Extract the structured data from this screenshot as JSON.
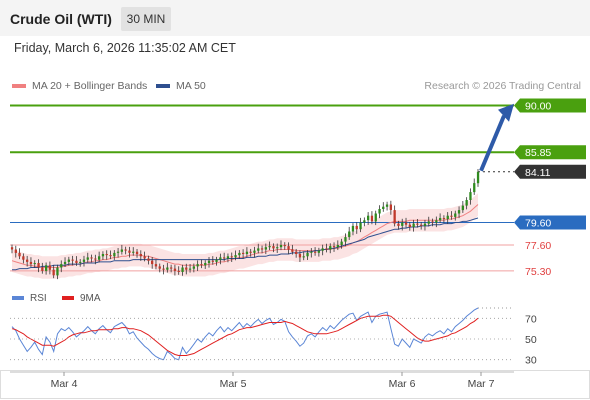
{
  "header": {
    "title": "Crude Oil (WTI)",
    "timeframe": "30 MIN"
  },
  "timestamp": "Friday, March 6, 2026 11:35:02 AM CET",
  "legend": {
    "ma20": {
      "label": "MA 20 + Bollinger Bands",
      "color": "#f08080"
    },
    "ma50": {
      "label": "MA 50",
      "color": "#2e4f8f"
    }
  },
  "credit": "Research © 2026 Trading Central",
  "rsi_legend": {
    "rsi": {
      "label": "RSI",
      "color": "#5b86d6"
    },
    "ma9": {
      "label": "9MA",
      "color": "#e02020"
    }
  },
  "chart_data": [
    {
      "type": "candlestick",
      "ylim": [
        73.6,
        91.2
      ],
      "levels": [
        {
          "value": 90.0,
          "label": "90.00",
          "kind": "resistance",
          "color": "#4aa00f"
        },
        {
          "value": 85.85,
          "label": "85.85",
          "kind": "resistance",
          "color": "#4aa00f"
        },
        {
          "value": 84.11,
          "label": "84.11",
          "kind": "last",
          "color": "#333333"
        },
        {
          "value": 79.6,
          "label": "79.60",
          "kind": "pivot",
          "color": "#2a6cc0"
        },
        {
          "value": 77.6,
          "label": "77.60",
          "kind": "support",
          "color": "#e06060"
        },
        {
          "value": 75.3,
          "label": "75.30",
          "kind": "support",
          "color": "#e06060"
        }
      ],
      "x_ticks": [
        "Mar 4",
        "Mar 5",
        "Mar 6",
        "Mar 7"
      ],
      "arrow": {
        "from": 84.2,
        "to": 89.8,
        "direction": "up"
      },
      "close": [
        77.2,
        76.9,
        76.6,
        76.3,
        76.1,
        75.9,
        76.0,
        75.6,
        75.3,
        75.8,
        75.4,
        74.9,
        75.6,
        75.9,
        76.1,
        76.3,
        76.2,
        76.0,
        76.1,
        76.3,
        76.5,
        76.4,
        76.3,
        76.6,
        76.8,
        76.7,
        76.6,
        76.9,
        77.0,
        77.2,
        77.1,
        76.9,
        77.0,
        76.8,
        76.6,
        76.4,
        76.2,
        75.9,
        75.7,
        75.5,
        75.4,
        75.6,
        75.5,
        75.3,
        75.2,
        75.6,
        75.4,
        75.5,
        75.7,
        75.9,
        75.8,
        76.0,
        76.2,
        76.1,
        76.3,
        76.5,
        76.4,
        76.6,
        76.5,
        76.7,
        76.9,
        76.8,
        77.0,
        76.9,
        77.1,
        77.3,
        77.2,
        77.4,
        77.5,
        77.3,
        77.4,
        77.6,
        77.5,
        77.2,
        77.0,
        76.8,
        76.5,
        76.6,
        76.9,
        77.0,
        76.9,
        77.1,
        77.3,
        77.2,
        77.5,
        77.4,
        77.6,
        77.9,
        78.3,
        78.8,
        79.3,
        79.0,
        79.6,
        79.8,
        80.2,
        79.7,
        80.4,
        80.8,
        81.0,
        81.2,
        80.7,
        79.5,
        79.3,
        79.6,
        79.4,
        79.2,
        79.5,
        79.4,
        79.3,
        79.5,
        79.7,
        79.6,
        79.8,
        80.0,
        79.9,
        80.2,
        80.1,
        80.4,
        80.7,
        81.1,
        81.6,
        82.3,
        83.1,
        84.11
      ],
      "ma20": [
        76.2,
        76.1,
        76.0,
        75.9,
        75.8,
        75.8,
        75.7,
        75.7,
        75.6,
        75.6,
        75.6,
        75.6,
        75.6,
        75.7,
        75.7,
        75.8,
        75.8,
        75.9,
        75.9,
        76.0,
        76.1,
        76.1,
        76.2,
        76.2,
        76.3,
        76.3,
        76.4,
        76.5,
        76.5,
        76.6,
        76.6,
        76.7,
        76.7,
        76.7,
        76.7,
        76.6,
        76.6,
        76.5,
        76.4,
        76.3,
        76.2,
        76.1,
        76.0,
        75.9,
        75.9,
        75.8,
        75.8,
        75.8,
        75.8,
        75.8,
        75.8,
        75.8,
        75.9,
        75.9,
        76.0,
        76.1,
        76.1,
        76.2,
        76.3,
        76.4,
        76.5,
        76.5,
        76.6,
        76.7,
        76.8,
        76.9,
        76.9,
        77.0,
        77.1,
        77.1,
        77.2,
        77.2,
        77.2,
        77.2,
        77.2,
        77.1,
        77.1,
        77.1,
        77.1,
        77.1,
        77.1,
        77.1,
        77.2,
        77.2,
        77.2,
        77.3,
        77.3,
        77.4,
        77.5,
        77.6,
        77.8,
        77.9,
        78.1,
        78.3,
        78.5,
        78.7,
        78.9,
        79.1,
        79.3,
        79.5,
        79.6,
        79.7,
        79.7,
        79.7,
        79.7,
        79.8,
        79.8,
        79.8,
        79.8,
        79.8,
        79.8,
        79.8,
        79.8,
        79.8,
        79.8,
        79.9,
        79.9,
        80.0,
        80.1,
        80.2,
        80.4,
        80.6,
        80.9,
        81.2
      ],
      "ma50": [
        75.4,
        75.4,
        75.5,
        75.5,
        75.5,
        75.6,
        75.6,
        75.6,
        75.7,
        75.7,
        75.7,
        75.8,
        75.8,
        75.8,
        75.8,
        75.9,
        75.9,
        75.9,
        75.9,
        76.0,
        76.0,
        76.0,
        76.0,
        76.1,
        76.1,
        76.1,
        76.1,
        76.2,
        76.2,
        76.2,
        76.2,
        76.2,
        76.3,
        76.3,
        76.3,
        76.3,
        76.3,
        76.3,
        76.3,
        76.3,
        76.3,
        76.3,
        76.3,
        76.3,
        76.3,
        76.3,
        76.3,
        76.3,
        76.3,
        76.3,
        76.3,
        76.3,
        76.3,
        76.3,
        76.3,
        76.3,
        76.3,
        76.4,
        76.4,
        76.4,
        76.4,
        76.4,
        76.5,
        76.5,
        76.5,
        76.6,
        76.6,
        76.6,
        76.7,
        76.7,
        76.7,
        76.8,
        76.8,
        76.8,
        76.9,
        76.9,
        76.9,
        77.0,
        77.0,
        77.0,
        77.1,
        77.1,
        77.2,
        77.2,
        77.3,
        77.3,
        77.4,
        77.5,
        77.6,
        77.7,
        77.8,
        77.9,
        78.0,
        78.1,
        78.3,
        78.4,
        78.5,
        78.6,
        78.7,
        78.8,
        78.9,
        79.0,
        79.0,
        79.1,
        79.1,
        79.2,
        79.2,
        79.2,
        79.3,
        79.3,
        79.3,
        79.4,
        79.4,
        79.4,
        79.5,
        79.5,
        79.5,
        79.6,
        79.6,
        79.7,
        79.7,
        79.8,
        79.9,
        80.0
      ]
    },
    {
      "type": "line",
      "name": "RSI",
      "ylim": [
        20,
        80
      ],
      "y_ticks": [
        70,
        50,
        30
      ],
      "rsi": [
        62,
        58,
        50,
        44,
        38,
        42,
        47,
        40,
        35,
        52,
        47,
        38,
        55,
        60,
        58,
        61,
        57,
        52,
        55,
        58,
        62,
        58,
        55,
        60,
        63,
        59,
        56,
        62,
        64,
        66,
        62,
        55,
        57,
        51,
        47,
        43,
        40,
        36,
        33,
        31,
        30,
        38,
        35,
        31,
        30,
        42,
        36,
        40,
        45,
        50,
        47,
        52,
        56,
        53,
        58,
        62,
        57,
        61,
        58,
        62,
        66,
        61,
        65,
        62,
        66,
        69,
        65,
        68,
        70,
        64,
        66,
        69,
        67,
        57,
        52,
        48,
        43,
        46,
        53,
        55,
        52,
        57,
        61,
        58,
        63,
        60,
        64,
        68,
        71,
        74,
        75,
        68,
        72,
        74,
        76,
        66,
        72,
        74,
        75,
        76,
        60,
        45,
        43,
        50,
        46,
        42,
        50,
        48,
        46,
        52,
        55,
        53,
        56,
        58,
        55,
        60,
        57,
        62,
        65,
        68,
        72,
        75,
        78,
        80
      ],
      "ma9": [
        60,
        59,
        57,
        55,
        52,
        50,
        48,
        46,
        44,
        44,
        44,
        43,
        45,
        47,
        49,
        52,
        54,
        55,
        56,
        56,
        57,
        58,
        58,
        59,
        59,
        59,
        59,
        60,
        60,
        61,
        61,
        60,
        60,
        59,
        58,
        56,
        54,
        51,
        48,
        45,
        42,
        39,
        37,
        35,
        34,
        34,
        34,
        35,
        36,
        38,
        40,
        42,
        44,
        46,
        48,
        50,
        52,
        54,
        55,
        57,
        59,
        60,
        61,
        61,
        62,
        63,
        64,
        65,
        66,
        66,
        66,
        66,
        67,
        66,
        65,
        63,
        61,
        59,
        57,
        56,
        55,
        55,
        55,
        55,
        56,
        57,
        58,
        60,
        62,
        64,
        66,
        68,
        70,
        71,
        72,
        72,
        72,
        72,
        73,
        73,
        72,
        69,
        66,
        63,
        60,
        57,
        54,
        51,
        49,
        48,
        48,
        49,
        50,
        51,
        52,
        53,
        55,
        56,
        58,
        60,
        62,
        65,
        67,
        70
      ]
    }
  ]
}
